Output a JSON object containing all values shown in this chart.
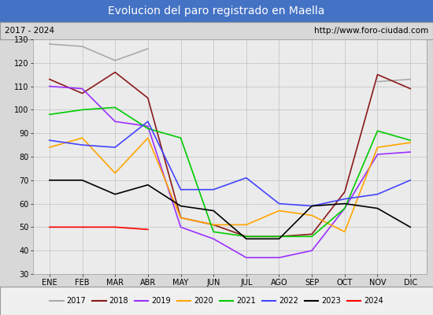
{
  "title": "Evolucion del paro registrado en Maella",
  "subtitle_left": "2017 - 2024",
  "subtitle_right": "http://www.foro-ciudad.com",
  "months": [
    "ENE",
    "FEB",
    "MAR",
    "ABR",
    "MAY",
    "JUN",
    "JUL",
    "AGO",
    "SEP",
    "OCT",
    "NOV",
    "DIC"
  ],
  "ylim": [
    30,
    130
  ],
  "yticks": [
    30,
    40,
    50,
    60,
    70,
    80,
    90,
    100,
    110,
    120,
    130
  ],
  "series": {
    "2017": {
      "color": "#aaaaaa",
      "linewidth": 1.2,
      "data": [
        128,
        127,
        121,
        126,
        null,
        null,
        null,
        null,
        null,
        null,
        112,
        113
      ]
    },
    "2018": {
      "color": "#8b1a1a",
      "linewidth": 1.2,
      "data": [
        113,
        107,
        116,
        105,
        54,
        51,
        46,
        46,
        47,
        65,
        115,
        109
      ]
    },
    "2019": {
      "color": "#9b30ff",
      "linewidth": 1.2,
      "data": [
        110,
        109,
        95,
        93,
        50,
        45,
        37,
        37,
        40,
        58,
        81,
        82
      ]
    },
    "2020": {
      "color": "#ffa500",
      "linewidth": 1.2,
      "data": [
        84,
        88,
        73,
        88,
        54,
        51,
        51,
        57,
        55,
        48,
        84,
        86
      ]
    },
    "2021": {
      "color": "#00cc00",
      "linewidth": 1.2,
      "data": [
        98,
        100,
        101,
        92,
        88,
        48,
        46,
        46,
        46,
        58,
        91,
        87
      ]
    },
    "2022": {
      "color": "#4444ff",
      "linewidth": 1.2,
      "data": [
        87,
        85,
        84,
        95,
        66,
        66,
        71,
        60,
        59,
        62,
        64,
        70
      ]
    },
    "2023": {
      "color": "#000000",
      "linewidth": 1.2,
      "data": [
        70,
        70,
        64,
        68,
        59,
        57,
        45,
        45,
        59,
        60,
        58,
        50
      ]
    },
    "2024": {
      "color": "#ff0000",
      "linewidth": 1.2,
      "data": [
        50,
        50,
        50,
        49,
        null,
        null,
        null,
        null,
        null,
        null,
        null,
        null
      ]
    }
  },
  "bg_color": "#d8d8d8",
  "plot_bg_color": "#ebebeb",
  "title_bg_color": "#4472c4",
  "title_color": "#ffffff",
  "grid_color": "#c0c0c0",
  "legend_bg": "#f0f0f0",
  "border_color": "#999999"
}
